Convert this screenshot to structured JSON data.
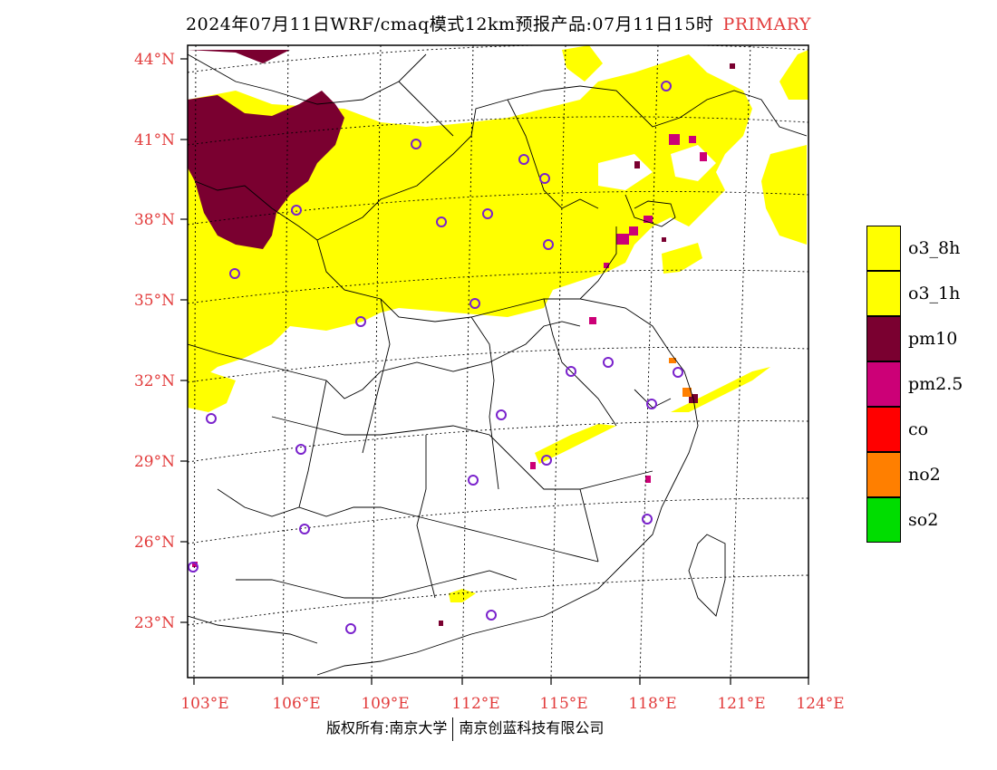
{
  "header": {
    "title": "2024年07月11日WRF/cmaq模式12km预报产品:07月11日15时",
    "tag": "PRIMARY"
  },
  "map": {
    "lat_labels": [
      "44°N",
      "41°N",
      "38°N",
      "35°N",
      "32°N",
      "29°N",
      "26°N",
      "23°N"
    ],
    "lon_labels": [
      "103°E",
      "106°E",
      "109°E",
      "112°E",
      "115°E",
      "118°E",
      "121°E",
      "124°E"
    ],
    "axis_label_color": "#e23b3b"
  },
  "legend": {
    "items": [
      {
        "label": "o3_8h",
        "color": "#ffff00"
      },
      {
        "label": "o3_1h",
        "color": "#ffff00"
      },
      {
        "label": "pm10",
        "color": "#7a0030"
      },
      {
        "label": "pm2.5",
        "color": "#cc0077"
      },
      {
        "label": "co",
        "color": "#ff0000"
      },
      {
        "label": "no2",
        "color": "#ff7f00"
      },
      {
        "label": "so2",
        "color": "#00dd00"
      }
    ]
  },
  "footer": {
    "left": "版权所有:南京大学",
    "right": "南京创蓝科技有限公司"
  }
}
